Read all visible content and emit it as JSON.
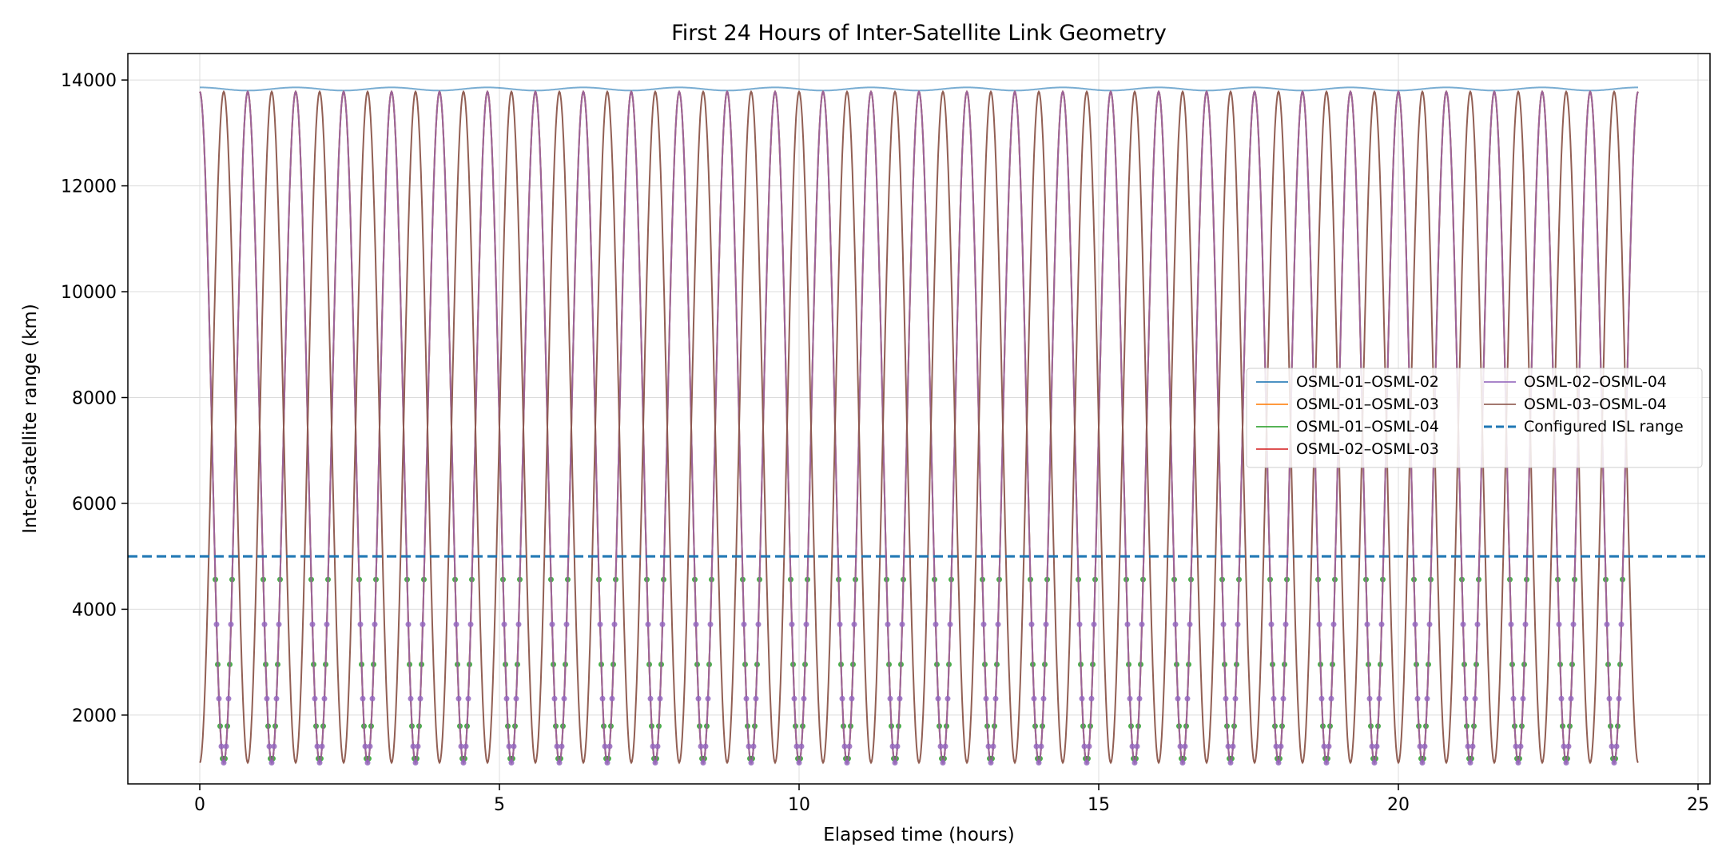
{
  "chart_data": {
    "type": "line",
    "title": "First 24 Hours of Inter-Satellite Link Geometry",
    "xlabel": "Elapsed time (hours)",
    "ylabel": "Inter-satellite range (km)",
    "xlim": [
      -1.2,
      25.2
    ],
    "ylim": [
      700,
      14500
    ],
    "x_ticks": [
      0,
      5,
      10,
      15,
      20,
      25
    ],
    "y_ticks": [
      2000,
      4000,
      6000,
      8000,
      10000,
      12000,
      14000
    ],
    "grid": true,
    "legend_position": "center-right",
    "legend_columns": 2,
    "series": [
      {
        "name": "OSML-01–OSML-02",
        "color": "#1f77b4",
        "kind": "near-constant",
        "mean_km": 13830,
        "amplitude_km": 30,
        "period_hours": 1.6,
        "alpha": 0.6
      },
      {
        "name": "OSML-01–OSML-03",
        "color": "#ff7f0e",
        "kind": "oscillating",
        "max_km": 13780,
        "min_km": 1100,
        "period_hours": 0.8,
        "phase": 0.0,
        "alpha": 0.6
      },
      {
        "name": "OSML-01–OSML-04",
        "color": "#2ca02c",
        "kind": "oscillating",
        "max_km": 13780,
        "min_km": 1100,
        "period_hours": 0.8,
        "phase": 0.0,
        "alpha": 0.6
      },
      {
        "name": "OSML-02–OSML-03",
        "color": "#d62728",
        "kind": "oscillating",
        "max_km": 13780,
        "min_km": 1100,
        "period_hours": 0.8,
        "phase": 0.0,
        "alpha": 0.6
      },
      {
        "name": "OSML-02–OSML-04",
        "color": "#9467bd",
        "kind": "oscillating",
        "max_km": 13780,
        "min_km": 1100,
        "period_hours": 0.8,
        "phase": 0.0,
        "alpha": 0.75
      },
      {
        "name": "OSML-03–OSML-04",
        "color": "#8c564b",
        "kind": "oscillating",
        "max_km": 13780,
        "min_km": 1100,
        "period_hours": 0.8,
        "phase": 0.5,
        "alpha": 0.95
      }
    ],
    "threshold": {
      "name": "Configured ISL range",
      "value_km": 5000,
      "color": "#1f77b4",
      "style": "dashed"
    },
    "marker_points_below_km": 5000,
    "x_range_data": [
      0,
      24
    ]
  }
}
